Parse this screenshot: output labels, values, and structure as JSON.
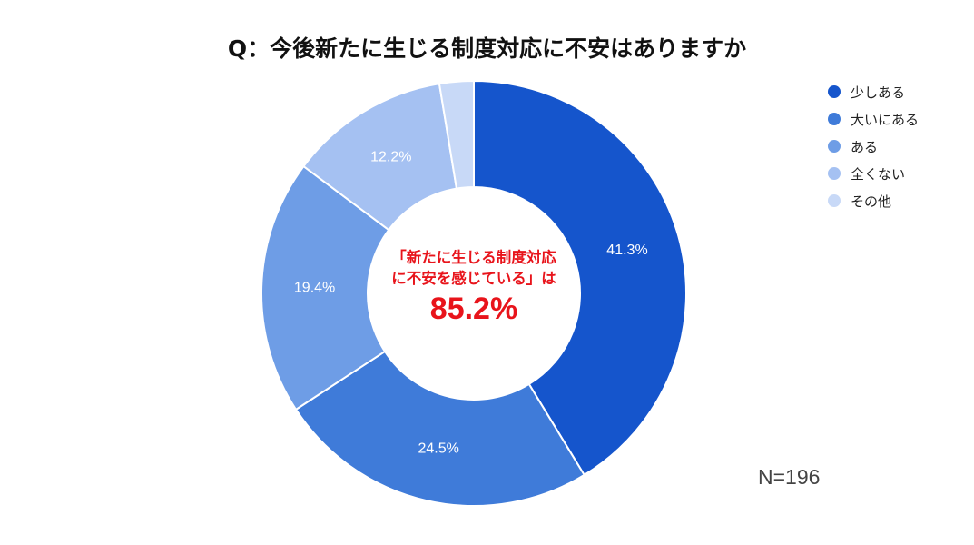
{
  "chart_data": {
    "type": "pie",
    "title": "Q：今後新たに生じる制度対応に不安はありますか",
    "categories": [
      "少しある",
      "大いにある",
      "ある",
      "全くない",
      "その他"
    ],
    "values": [
      41.3,
      24.5,
      19.4,
      12.2,
      2.6
    ],
    "value_labels": [
      "41.3%",
      "24.5%",
      "19.4%",
      "12.2%",
      ""
    ],
    "colors": [
      "#1555cc",
      "#3f7bd9",
      "#6e9de6",
      "#a5c1f2",
      "#c8d9f7"
    ],
    "legend_position": "right",
    "center": {
      "line1": "「新たに生じる制度対応",
      "line2": "に不安を感じている」は",
      "value": "85.2%"
    },
    "sample_size": "N=196"
  }
}
